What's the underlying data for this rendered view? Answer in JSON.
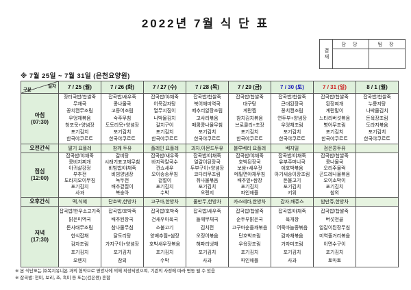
{
  "page": {
    "title": "2022년 7월 식 단 표",
    "subtitle": "※  7월  25일  ~  7월  31일  (은천요양원)"
  },
  "approval": {
    "label": "결재",
    "columns": [
      "담 당",
      "팀 장"
    ]
  },
  "colors": {
    "header_bg": "#dff0dc",
    "snack_bg": "#e6f3e0",
    "border": "#555555",
    "saturday": "#1a1ab8",
    "sunday": "#cc2020",
    "weekday": "#111111"
  },
  "table": {
    "corner": {
      "top": "일자",
      "bottom": "구분"
    },
    "columns": [
      {
        "label": "7 / 25 (월)",
        "color": "#111111"
      },
      {
        "label": "7 / 26 (화)",
        "color": "#111111"
      },
      {
        "label": "7 / 27 (수)",
        "color": "#111111"
      },
      {
        "label": "7 / 28 (목)",
        "color": "#111111"
      },
      {
        "label": "7 / 29 (금)",
        "color": "#111111"
      },
      {
        "label": "7 / 30 (토)",
        "color": "#1a1ab8"
      },
      {
        "label": "7 / 31 (일)",
        "color": "#cc2020"
      },
      {
        "label": "8 / 1 (월)",
        "color": "#111111"
      }
    ],
    "rows": [
      {
        "label": "아침",
        "time": "(07:30)",
        "type": "meal",
        "height": 73,
        "cells": [
          [
            "장터국밥/찹쌀죽",
            "무채국",
            "꽁치캔무조림",
            "우엉채볶음",
            "청포묵+양념장",
            "포기김치",
            "한국야쿠르트"
          ],
          [
            "잡곡밥/새우죽",
            "콩나물국",
            "고등어조림",
            "숙주무침",
            "도토리묵+양념장",
            "포기김치",
            "한국야쿠르트"
          ],
          [
            "잡곡밥/야채죽",
            "어묵감자탕",
            "열무지짐이",
            "나박물김치",
            "갈치구이",
            "포기김치",
            "한국야쿠르트"
          ],
          [
            "잡곡밥/찹쌀죽",
            "북어채미역국",
            "메추리알장조림",
            "고사리볶음",
            "매콤콩나물무침",
            "포기김치",
            "한국야쿠르트"
          ],
          [
            "잡곡밥/찹쌀죽",
            "대구탕",
            "계란찜",
            "참치김치볶음",
            "브로콜리+초장",
            "포기김치",
            "한국야쿠르트"
          ],
          [
            "잡곡밥/찹쌀죽",
            "근대된장국",
            "꽁치캔조림",
            "연두부+양념장",
            "우엉채조림",
            "포기김치",
            "한국야쿠르트"
          ],
          [
            "잡곡밥/찹쌀죽",
            "된장찌개",
            "계란말이",
            "느타리버섯볶음",
            "병어무조림",
            "포기김치",
            "한국야쿠르트"
          ],
          [
            "잡곡밥/찹쌀죽",
            "누룽지탕",
            "나박물김치",
            "돈육장조림",
            "도라지볶음",
            "포기김치",
            "한국야쿠르트"
          ]
        ]
      },
      {
        "label": "오전간식",
        "time": "",
        "type": "snack",
        "height": 13,
        "cells": [
          "딸기 요플레",
          "참깨 두유",
          "플레인 요플레",
          "과자,아몬드두유",
          "블루베리 요플레",
          "베지밀",
          "검은콩두유",
          ""
        ]
      },
      {
        "label": "점심",
        "time": "(12:00)",
        "type": "meal",
        "height": 64,
        "cells": [
          [
            "잡곡밥/야채죽",
            "콩비지찌개",
            "아귀살강정",
            "부추전",
            "도라지오이무침",
            "포기김치",
            "사과"
          ],
          [
            "갈비탕",
            "시래기표고채무침",
            "비빔밥/야채죽",
            "비빔양념장",
            "녹두전",
            "배추겉절이",
            "복숭아"
          ],
          [
            "잡곡밥/새우죽",
            "바지락칼국수",
            "깐쇼새우",
            "오이송송무침",
            "겉절이",
            "포기김치",
            "수박"
          ],
          [
            "잡곡밥/야채죽",
            "얼갈이된장국",
            "두부구이+양념장",
            "코다리무조림",
            "취나물볶음",
            "포기김치",
            "오렌지"
          ],
          [
            "잡곡밥/야채죽",
            "호박된장국",
            "보쌈+새우젓",
            "메밀면야채무침",
            "배추잎+쌈장",
            "포기김치",
            "파인애플"
          ],
          [
            "잡곡밥/야채죽",
            "유부주머니국",
            "애호박볶음",
            "아기새송이장조림",
            "돈불고기",
            "포기김치",
            "키위"
          ],
          [
            "잡곡밥/찹쌀죽",
            "콩나물국",
            "오리주물럭",
            "곤드레나물볶음",
            "오이소박이",
            "포기김치",
            "참외"
          ],
          []
        ]
      },
      {
        "label": "오후간식",
        "time": "",
        "type": "snack",
        "height": 13,
        "cells": [
          "떡,식혜",
          "단호박,한방차",
          "고구마,한방차",
          "물만두,한방차",
          "카스테라,한방차",
          "감자,배쥬스",
          "밤만쥬,한방차",
          ""
        ]
      },
      {
        "label": "저녁",
        "time": "(17:30)",
        "type": "meal",
        "height": 88,
        "cells": [
          [
            "잡곡밥/한우소고기죽",
            "맑은미역국",
            "돈사태무조림",
            "한식잡채",
            "감자조림",
            "포기김치",
            "오렌지"
          ],
          [
            "잡곡밥/호박죽",
            "배추된장국",
            "참나물무침",
            "닭도리탕",
            "가지구이+양념장",
            "포기김치",
            "참외"
          ],
          [
            "잡곡밥/호박죽",
            "건새우아욱국",
            "소불고기",
            "양배추찜+쌈장",
            "호박새우젓볶음",
            "포기김치",
            "수박"
          ],
          [
            "잡곡밥/새우죽",
            "들깨무채국",
            "김치전",
            "오징어볶음",
            "해파리냉채",
            "포기김치",
            "사과"
          ],
          [
            "잡곡밥/찹쌀죽",
            "순두부맑은국",
            "고구마순들깨볶음",
            "단호박조림",
            "우육장조림",
            "포기김치",
            "파인애플"
          ],
          [
            "잡곡밥/야채죽",
            "육개장",
            "어묵마늘종볶음",
            "감자채볶음",
            "가자미조림",
            "포기김치",
            "사과"
          ],
          [
            "잡곡밥/찹쌀죽",
            "버섯전골",
            "얼갈이된장무침",
            "미역줄거리볶음",
            "이면수구이",
            "포기김치",
            "토마토"
          ],
          []
        ]
      }
    ]
  },
  "footnotes": [
    "※ 본 식단표는 ㈜복지유니온 과의 협약으로 영양사에 의해 작성되었으며, 기관의 사정에 따라 변동 될 수 있음",
    "※ 잡곡밥: 현미, 보리, 조, 흑미 등 또는(검은콩) 혼합"
  ]
}
